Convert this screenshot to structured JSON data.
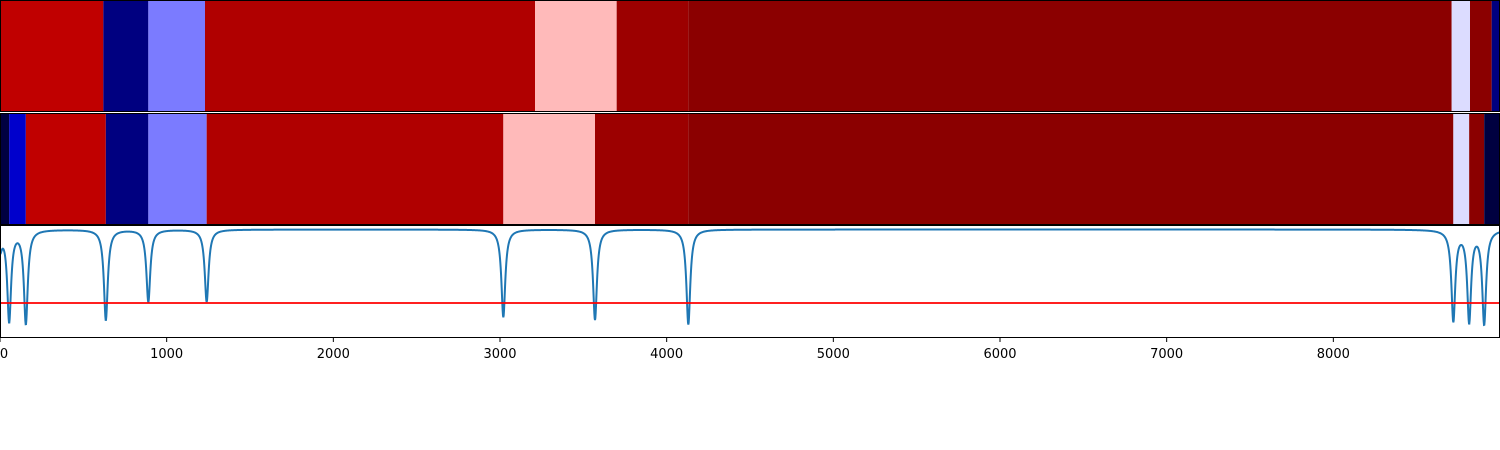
{
  "chart_data": {
    "type": "heatmap",
    "title": "",
    "xlabel": "",
    "ylabel": "",
    "xlim": [
      0,
      9000
    ],
    "xticks": [
      0,
      1000,
      2000,
      3000,
      4000,
      5000,
      6000,
      7000,
      8000
    ],
    "xtick_labels": [
      "0",
      "1000",
      "2000",
      "3000",
      "4000",
      "5000",
      "6000",
      "7000",
      "8000"
    ],
    "rows": [
      {
        "segments": [
          {
            "start": 0,
            "end": 620,
            "color": "#c00000"
          },
          {
            "start": 620,
            "end": 890,
            "color": "#000080"
          },
          {
            "start": 890,
            "end": 1230,
            "color": "#7b7bff"
          },
          {
            "start": 1230,
            "end": 3210,
            "color": "#b00000"
          },
          {
            "start": 3210,
            "end": 3700,
            "color": "#ffbaba"
          },
          {
            "start": 3700,
            "end": 4130,
            "color": "#9c0000"
          },
          {
            "start": 4130,
            "end": 8710,
            "color": "#8b0000"
          },
          {
            "start": 8710,
            "end": 8820,
            "color": "#dcdcff"
          },
          {
            "start": 8820,
            "end": 8950,
            "color": "#8b0000"
          },
          {
            "start": 8950,
            "end": 9000,
            "color": "#000080"
          }
        ]
      },
      {
        "segments": [
          {
            "start": 0,
            "end": 55,
            "color": "#000040"
          },
          {
            "start": 55,
            "end": 155,
            "color": "#0000cc"
          },
          {
            "start": 155,
            "end": 635,
            "color": "#c00000"
          },
          {
            "start": 635,
            "end": 890,
            "color": "#000080"
          },
          {
            "start": 890,
            "end": 1240,
            "color": "#7b7bff"
          },
          {
            "start": 1240,
            "end": 3020,
            "color": "#b00000"
          },
          {
            "start": 3020,
            "end": 3570,
            "color": "#ffbaba"
          },
          {
            "start": 3570,
            "end": 4130,
            "color": "#9c0000"
          },
          {
            "start": 4130,
            "end": 8720,
            "color": "#8b0000"
          },
          {
            "start": 8720,
            "end": 8815,
            "color": "#dcdcff"
          },
          {
            "start": 8815,
            "end": 8905,
            "color": "#8b0000"
          },
          {
            "start": 8905,
            "end": 9000,
            "color": "#000040"
          }
        ]
      }
    ],
    "signal": {
      "color": "#1f77b4",
      "baseline": 0,
      "ylim": [
        -1.2,
        0.05
      ],
      "dips": [
        {
          "x": 0,
          "depth": 0.2
        },
        {
          "x": 55,
          "depth": 1.0
        },
        {
          "x": 155,
          "depth": 1.03
        },
        {
          "x": 635,
          "depth": 1.0
        },
        {
          "x": 890,
          "depth": 0.8
        },
        {
          "x": 1240,
          "depth": 0.8
        },
        {
          "x": 3020,
          "depth": 0.97
        },
        {
          "x": 3570,
          "depth": 1.0
        },
        {
          "x": 4130,
          "depth": 1.05
        },
        {
          "x": 8720,
          "depth": 1.0
        },
        {
          "x": 8815,
          "depth": 1.0
        },
        {
          "x": 8905,
          "depth": 1.03
        }
      ]
    },
    "threshold": {
      "color": "#ff0000",
      "value": -1.6
    },
    "grid": false,
    "legend": "none"
  }
}
